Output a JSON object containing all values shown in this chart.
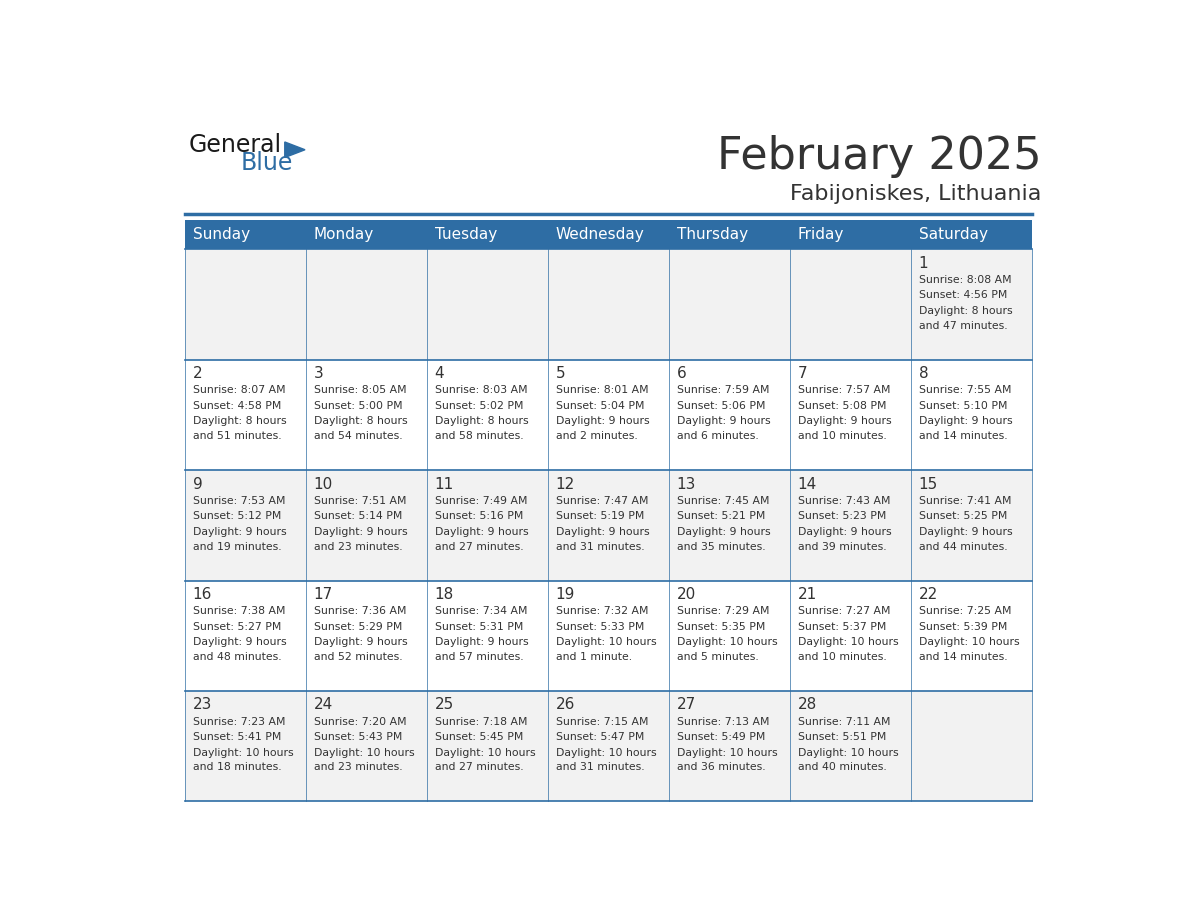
{
  "title": "February 2025",
  "subtitle": "Fabijoniskes, Lithuania",
  "header_bg": "#2E6DA4",
  "header_text": "#FFFFFF",
  "cell_bg_light": "#F2F2F2",
  "cell_bg_white": "#FFFFFF",
  "grid_color": "#2E6DA4",
  "text_color": "#333333",
  "days_of_week": [
    "Sunday",
    "Monday",
    "Tuesday",
    "Wednesday",
    "Thursday",
    "Friday",
    "Saturday"
  ],
  "weeks": [
    [
      {
        "day": "",
        "sunrise": "",
        "sunset": "",
        "daylight": ""
      },
      {
        "day": "",
        "sunrise": "",
        "sunset": "",
        "daylight": ""
      },
      {
        "day": "",
        "sunrise": "",
        "sunset": "",
        "daylight": ""
      },
      {
        "day": "",
        "sunrise": "",
        "sunset": "",
        "daylight": ""
      },
      {
        "day": "",
        "sunrise": "",
        "sunset": "",
        "daylight": ""
      },
      {
        "day": "",
        "sunrise": "",
        "sunset": "",
        "daylight": ""
      },
      {
        "day": "1",
        "sunrise": "Sunrise: 8:08 AM",
        "sunset": "Sunset: 4:56 PM",
        "daylight": "Daylight: 8 hours\nand 47 minutes."
      }
    ],
    [
      {
        "day": "2",
        "sunrise": "Sunrise: 8:07 AM",
        "sunset": "Sunset: 4:58 PM",
        "daylight": "Daylight: 8 hours\nand 51 minutes."
      },
      {
        "day": "3",
        "sunrise": "Sunrise: 8:05 AM",
        "sunset": "Sunset: 5:00 PM",
        "daylight": "Daylight: 8 hours\nand 54 minutes."
      },
      {
        "day": "4",
        "sunrise": "Sunrise: 8:03 AM",
        "sunset": "Sunset: 5:02 PM",
        "daylight": "Daylight: 8 hours\nand 58 minutes."
      },
      {
        "day": "5",
        "sunrise": "Sunrise: 8:01 AM",
        "sunset": "Sunset: 5:04 PM",
        "daylight": "Daylight: 9 hours\nand 2 minutes."
      },
      {
        "day": "6",
        "sunrise": "Sunrise: 7:59 AM",
        "sunset": "Sunset: 5:06 PM",
        "daylight": "Daylight: 9 hours\nand 6 minutes."
      },
      {
        "day": "7",
        "sunrise": "Sunrise: 7:57 AM",
        "sunset": "Sunset: 5:08 PM",
        "daylight": "Daylight: 9 hours\nand 10 minutes."
      },
      {
        "day": "8",
        "sunrise": "Sunrise: 7:55 AM",
        "sunset": "Sunset: 5:10 PM",
        "daylight": "Daylight: 9 hours\nand 14 minutes."
      }
    ],
    [
      {
        "day": "9",
        "sunrise": "Sunrise: 7:53 AM",
        "sunset": "Sunset: 5:12 PM",
        "daylight": "Daylight: 9 hours\nand 19 minutes."
      },
      {
        "day": "10",
        "sunrise": "Sunrise: 7:51 AM",
        "sunset": "Sunset: 5:14 PM",
        "daylight": "Daylight: 9 hours\nand 23 minutes."
      },
      {
        "day": "11",
        "sunrise": "Sunrise: 7:49 AM",
        "sunset": "Sunset: 5:16 PM",
        "daylight": "Daylight: 9 hours\nand 27 minutes."
      },
      {
        "day": "12",
        "sunrise": "Sunrise: 7:47 AM",
        "sunset": "Sunset: 5:19 PM",
        "daylight": "Daylight: 9 hours\nand 31 minutes."
      },
      {
        "day": "13",
        "sunrise": "Sunrise: 7:45 AM",
        "sunset": "Sunset: 5:21 PM",
        "daylight": "Daylight: 9 hours\nand 35 minutes."
      },
      {
        "day": "14",
        "sunrise": "Sunrise: 7:43 AM",
        "sunset": "Sunset: 5:23 PM",
        "daylight": "Daylight: 9 hours\nand 39 minutes."
      },
      {
        "day": "15",
        "sunrise": "Sunrise: 7:41 AM",
        "sunset": "Sunset: 5:25 PM",
        "daylight": "Daylight: 9 hours\nand 44 minutes."
      }
    ],
    [
      {
        "day": "16",
        "sunrise": "Sunrise: 7:38 AM",
        "sunset": "Sunset: 5:27 PM",
        "daylight": "Daylight: 9 hours\nand 48 minutes."
      },
      {
        "day": "17",
        "sunrise": "Sunrise: 7:36 AM",
        "sunset": "Sunset: 5:29 PM",
        "daylight": "Daylight: 9 hours\nand 52 minutes."
      },
      {
        "day": "18",
        "sunrise": "Sunrise: 7:34 AM",
        "sunset": "Sunset: 5:31 PM",
        "daylight": "Daylight: 9 hours\nand 57 minutes."
      },
      {
        "day": "19",
        "sunrise": "Sunrise: 7:32 AM",
        "sunset": "Sunset: 5:33 PM",
        "daylight": "Daylight: 10 hours\nand 1 minute."
      },
      {
        "day": "20",
        "sunrise": "Sunrise: 7:29 AM",
        "sunset": "Sunset: 5:35 PM",
        "daylight": "Daylight: 10 hours\nand 5 minutes."
      },
      {
        "day": "21",
        "sunrise": "Sunrise: 7:27 AM",
        "sunset": "Sunset: 5:37 PM",
        "daylight": "Daylight: 10 hours\nand 10 minutes."
      },
      {
        "day": "22",
        "sunrise": "Sunrise: 7:25 AM",
        "sunset": "Sunset: 5:39 PM",
        "daylight": "Daylight: 10 hours\nand 14 minutes."
      }
    ],
    [
      {
        "day": "23",
        "sunrise": "Sunrise: 7:23 AM",
        "sunset": "Sunset: 5:41 PM",
        "daylight": "Daylight: 10 hours\nand 18 minutes."
      },
      {
        "day": "24",
        "sunrise": "Sunrise: 7:20 AM",
        "sunset": "Sunset: 5:43 PM",
        "daylight": "Daylight: 10 hours\nand 23 minutes."
      },
      {
        "day": "25",
        "sunrise": "Sunrise: 7:18 AM",
        "sunset": "Sunset: 5:45 PM",
        "daylight": "Daylight: 10 hours\nand 27 minutes."
      },
      {
        "day": "26",
        "sunrise": "Sunrise: 7:15 AM",
        "sunset": "Sunset: 5:47 PM",
        "daylight": "Daylight: 10 hours\nand 31 minutes."
      },
      {
        "day": "27",
        "sunrise": "Sunrise: 7:13 AM",
        "sunset": "Sunset: 5:49 PM",
        "daylight": "Daylight: 10 hours\nand 36 minutes."
      },
      {
        "day": "28",
        "sunrise": "Sunrise: 7:11 AM",
        "sunset": "Sunset: 5:51 PM",
        "daylight": "Daylight: 10 hours\nand 40 minutes."
      },
      {
        "day": "",
        "sunrise": "",
        "sunset": "",
        "daylight": ""
      }
    ]
  ]
}
